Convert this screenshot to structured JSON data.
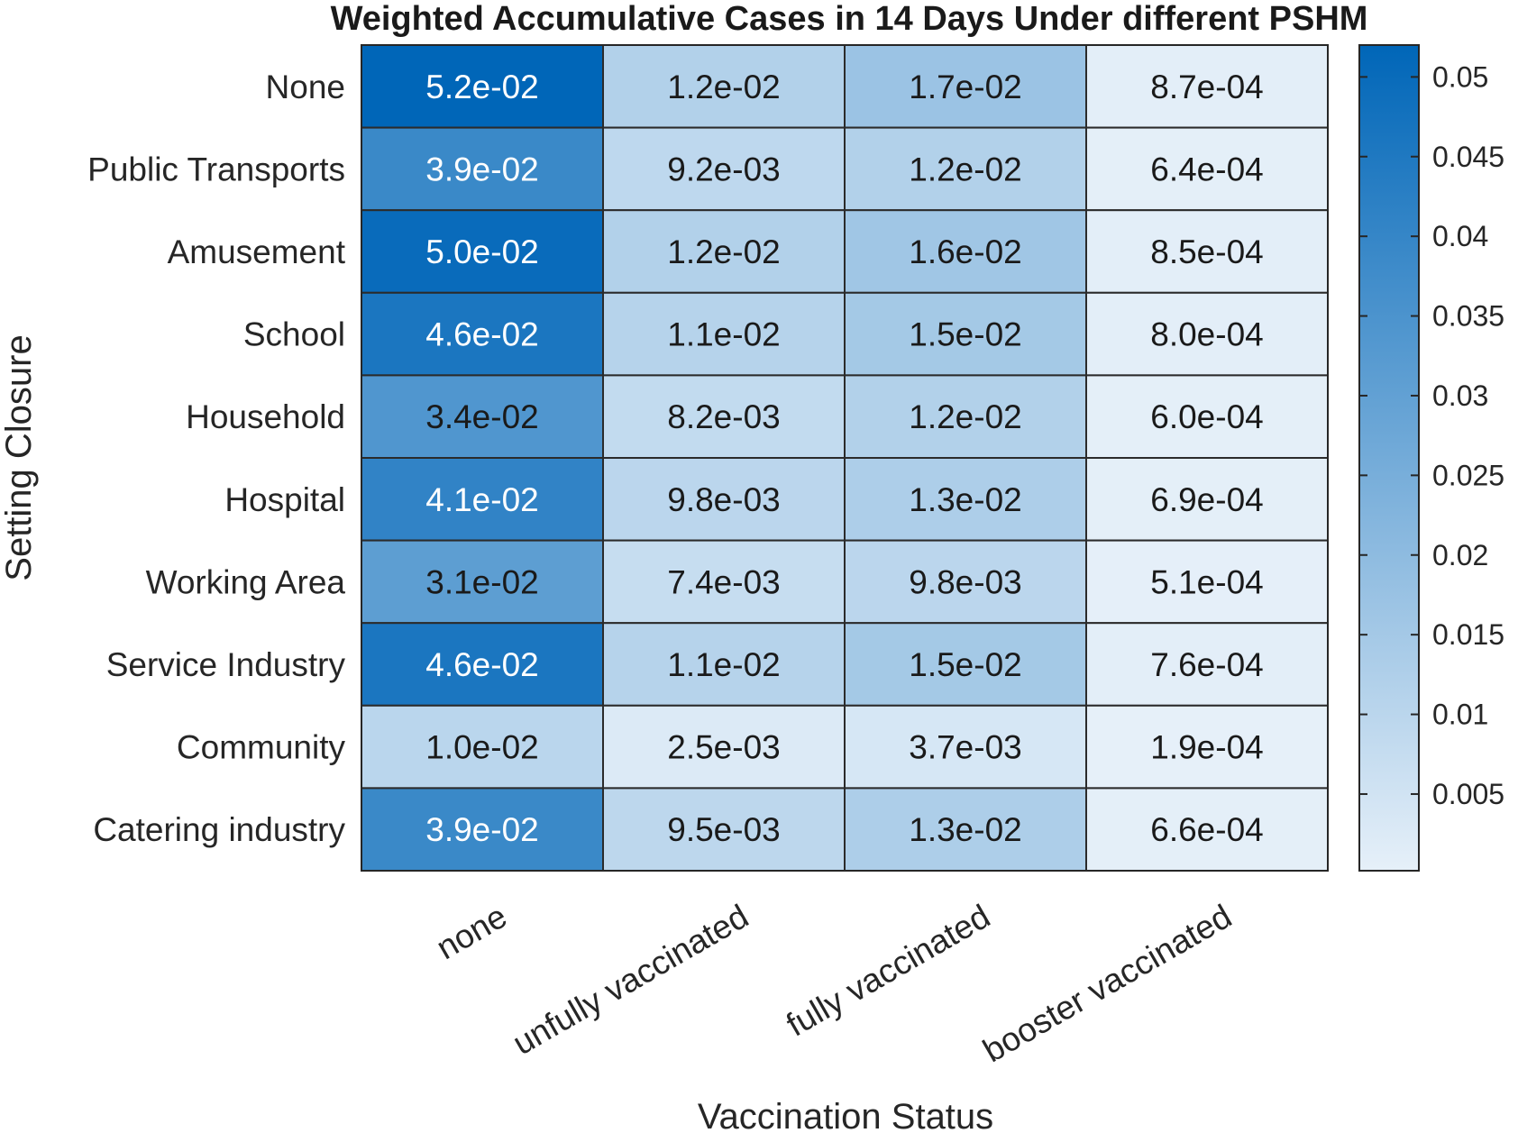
{
  "chart_data": {
    "type": "heatmap",
    "title": "Weighted Accumulative Cases in 14 Days Under different PSHM",
    "xlabel": "Vaccination Status",
    "ylabel": "Setting Closure",
    "x_categories": [
      "none",
      "unfully vaccinated",
      "fully vaccinated",
      "booster vaccinated"
    ],
    "y_categories": [
      "None",
      "Public Transports",
      "Amusement",
      "School",
      "Household",
      "Hospital",
      "Working Area",
      "Service Industry",
      "Community",
      "Catering industry"
    ],
    "values": [
      [
        0.052,
        0.012,
        0.017,
        0.00087
      ],
      [
        0.039,
        0.0092,
        0.012,
        0.00064
      ],
      [
        0.05,
        0.012,
        0.016,
        0.00085
      ],
      [
        0.046,
        0.011,
        0.015,
        0.0008
      ],
      [
        0.034,
        0.0082,
        0.012,
        0.0006
      ],
      [
        0.041,
        0.0098,
        0.013,
        0.00069
      ],
      [
        0.031,
        0.0074,
        0.0098,
        0.00051
      ],
      [
        0.046,
        0.011,
        0.015,
        0.00076
      ],
      [
        0.01,
        0.0025,
        0.0037,
        0.00019
      ],
      [
        0.039,
        0.0095,
        0.013,
        0.00066
      ]
    ],
    "cell_labels": [
      [
        "5.2e-02",
        "1.2e-02",
        "1.7e-02",
        "8.7e-04"
      ],
      [
        "3.9e-02",
        "9.2e-03",
        "1.2e-02",
        "6.4e-04"
      ],
      [
        "5.0e-02",
        "1.2e-02",
        "1.6e-02",
        "8.5e-04"
      ],
      [
        "4.6e-02",
        "1.1e-02",
        "1.5e-02",
        "8.0e-04"
      ],
      [
        "3.4e-02",
        "8.2e-03",
        "1.2e-02",
        "6.0e-04"
      ],
      [
        "4.1e-02",
        "9.8e-03",
        "1.3e-02",
        "6.9e-04"
      ],
      [
        "3.1e-02",
        "7.4e-03",
        "9.8e-03",
        "5.1e-04"
      ],
      [
        "4.6e-02",
        "1.1e-02",
        "1.5e-02",
        "7.6e-04"
      ],
      [
        "1.0e-02",
        "2.5e-03",
        "3.7e-03",
        "1.9e-04"
      ],
      [
        "3.9e-02",
        "9.5e-03",
        "1.3e-02",
        "6.6e-04"
      ]
    ],
    "colorbar": {
      "range": [
        0.00019,
        0.052
      ],
      "ticks": [
        0.005,
        0.01,
        0.015,
        0.02,
        0.025,
        0.03,
        0.035,
        0.04,
        0.045,
        0.05
      ],
      "tick_labels": [
        "0.005",
        "0.01",
        "0.015",
        "0.02",
        "0.025",
        "0.03",
        "0.035",
        "0.04",
        "0.045",
        "0.05"
      ],
      "color_low": "#e6f0f9",
      "color_high": "#0066b8"
    }
  }
}
